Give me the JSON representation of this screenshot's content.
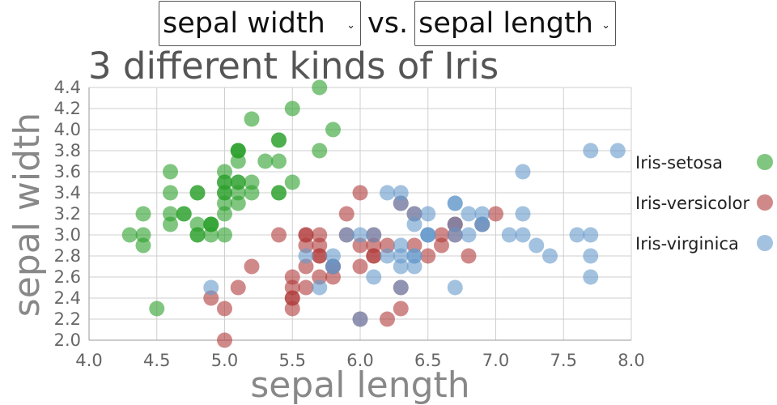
{
  "controls": {
    "y_select": {
      "selected": "sepal width"
    },
    "vs_label": "vs.",
    "x_select": {
      "selected": "sepal length"
    }
  },
  "chart_data": {
    "type": "scatter",
    "title": "3 different kinds of Iris",
    "xlabel": "sepal length",
    "ylabel": "sepal width",
    "xlim": [
      4.0,
      8.0
    ],
    "ylim": [
      2.0,
      4.4
    ],
    "xticks": [
      4.0,
      4.5,
      5.0,
      5.5,
      6.0,
      6.5,
      7.0,
      7.5,
      8.0
    ],
    "yticks": [
      2.0,
      2.2,
      2.4,
      2.6,
      2.8,
      3.0,
      3.2,
      3.4,
      3.6,
      3.8,
      4.0,
      4.2,
      4.4
    ],
    "grid": true,
    "legend_position": "right",
    "series": [
      {
        "name": "Iris-setosa",
        "color": "#2ca02c",
        "points": [
          [
            5.1,
            3.5
          ],
          [
            4.9,
            3.0
          ],
          [
            4.7,
            3.2
          ],
          [
            4.6,
            3.1
          ],
          [
            5.0,
            3.6
          ],
          [
            5.4,
            3.9
          ],
          [
            4.6,
            3.4
          ],
          [
            5.0,
            3.4
          ],
          [
            4.4,
            2.9
          ],
          [
            4.9,
            3.1
          ],
          [
            5.4,
            3.7
          ],
          [
            4.8,
            3.4
          ],
          [
            4.8,
            3.0
          ],
          [
            4.3,
            3.0
          ],
          [
            5.8,
            4.0
          ],
          [
            5.7,
            4.4
          ],
          [
            5.4,
            3.9
          ],
          [
            5.1,
            3.5
          ],
          [
            5.7,
            3.8
          ],
          [
            5.1,
            3.8
          ],
          [
            5.4,
            3.4
          ],
          [
            5.1,
            3.7
          ],
          [
            4.6,
            3.6
          ],
          [
            5.1,
            3.3
          ],
          [
            4.8,
            3.4
          ],
          [
            5.0,
            3.0
          ],
          [
            5.0,
            3.4
          ],
          [
            5.2,
            3.5
          ],
          [
            5.2,
            3.4
          ],
          [
            4.7,
            3.2
          ],
          [
            4.8,
            3.1
          ],
          [
            5.4,
            3.4
          ],
          [
            5.2,
            4.1
          ],
          [
            5.5,
            4.2
          ],
          [
            4.9,
            3.1
          ],
          [
            5.0,
            3.2
          ],
          [
            5.5,
            3.5
          ],
          [
            4.9,
            3.1
          ],
          [
            4.4,
            3.0
          ],
          [
            5.1,
            3.4
          ],
          [
            5.0,
            3.5
          ],
          [
            4.5,
            2.3
          ],
          [
            4.4,
            3.2
          ],
          [
            5.0,
            3.5
          ],
          [
            5.1,
            3.8
          ],
          [
            4.8,
            3.0
          ],
          [
            5.1,
            3.8
          ],
          [
            4.6,
            3.2
          ],
          [
            5.3,
            3.7
          ],
          [
            5.0,
            3.3
          ]
        ]
      },
      {
        "name": "Iris-versicolor",
        "color": "#b03a3a",
        "points": [
          [
            7.0,
            3.2
          ],
          [
            6.4,
            3.2
          ],
          [
            6.9,
            3.1
          ],
          [
            5.5,
            2.3
          ],
          [
            6.5,
            2.8
          ],
          [
            5.7,
            2.8
          ],
          [
            6.3,
            3.3
          ],
          [
            4.9,
            2.4
          ],
          [
            6.6,
            2.9
          ],
          [
            5.2,
            2.7
          ],
          [
            5.0,
            2.0
          ],
          [
            5.9,
            3.0
          ],
          [
            6.0,
            2.2
          ],
          [
            6.1,
            2.9
          ],
          [
            5.6,
            2.9
          ],
          [
            6.7,
            3.1
          ],
          [
            5.6,
            3.0
          ],
          [
            5.8,
            2.7
          ],
          [
            6.2,
            2.2
          ],
          [
            5.6,
            2.5
          ],
          [
            5.9,
            3.2
          ],
          [
            6.1,
            2.8
          ],
          [
            6.3,
            2.5
          ],
          [
            6.1,
            2.8
          ],
          [
            6.4,
            2.9
          ],
          [
            6.6,
            3.0
          ],
          [
            6.8,
            2.8
          ],
          [
            6.7,
            3.0
          ],
          [
            6.0,
            2.9
          ],
          [
            5.7,
            2.6
          ],
          [
            5.5,
            2.4
          ],
          [
            5.5,
            2.4
          ],
          [
            5.8,
            2.7
          ],
          [
            6.0,
            2.7
          ],
          [
            5.4,
            3.0
          ],
          [
            6.0,
            3.4
          ],
          [
            6.7,
            3.1
          ],
          [
            6.3,
            2.3
          ],
          [
            5.6,
            3.0
          ],
          [
            5.5,
            2.5
          ],
          [
            5.5,
            2.6
          ],
          [
            6.1,
            3.0
          ],
          [
            5.8,
            2.6
          ],
          [
            5.0,
            2.3
          ],
          [
            5.6,
            2.7
          ],
          [
            5.7,
            3.0
          ],
          [
            5.7,
            2.9
          ],
          [
            6.2,
            2.9
          ],
          [
            5.1,
            2.5
          ],
          [
            5.7,
            2.8
          ]
        ]
      },
      {
        "name": "Iris-virginica",
        "color": "#6699cc",
        "points": [
          [
            6.3,
            3.3
          ],
          [
            5.8,
            2.7
          ],
          [
            7.1,
            3.0
          ],
          [
            6.3,
            2.9
          ],
          [
            6.5,
            3.0
          ],
          [
            7.6,
            3.0
          ],
          [
            4.9,
            2.5
          ],
          [
            7.3,
            2.9
          ],
          [
            6.7,
            2.5
          ],
          [
            7.2,
            3.6
          ],
          [
            6.5,
            3.2
          ],
          [
            6.4,
            2.7
          ],
          [
            6.8,
            3.0
          ],
          [
            5.7,
            2.5
          ],
          [
            5.8,
            2.8
          ],
          [
            6.4,
            3.2
          ],
          [
            6.5,
            3.0
          ],
          [
            7.7,
            3.8
          ],
          [
            7.7,
            2.6
          ],
          [
            6.0,
            2.2
          ],
          [
            6.9,
            3.2
          ],
          [
            5.6,
            2.8
          ],
          [
            7.7,
            2.8
          ],
          [
            6.3,
            2.7
          ],
          [
            6.7,
            3.3
          ],
          [
            7.2,
            3.2
          ],
          [
            6.2,
            2.8
          ],
          [
            6.1,
            3.0
          ],
          [
            6.4,
            2.8
          ],
          [
            7.2,
            3.0
          ],
          [
            7.4,
            2.8
          ],
          [
            7.9,
            3.8
          ],
          [
            6.4,
            2.8
          ],
          [
            6.3,
            2.8
          ],
          [
            6.1,
            2.6
          ],
          [
            7.7,
            3.0
          ],
          [
            6.3,
            3.4
          ],
          [
            6.4,
            3.1
          ],
          [
            6.0,
            3.0
          ],
          [
            6.9,
            3.1
          ],
          [
            6.7,
            3.1
          ],
          [
            6.9,
            3.1
          ],
          [
            5.8,
            2.7
          ],
          [
            6.8,
            3.2
          ],
          [
            6.7,
            3.3
          ],
          [
            6.7,
            3.0
          ],
          [
            6.3,
            2.5
          ],
          [
            6.5,
            3.0
          ],
          [
            6.2,
            3.4
          ],
          [
            5.9,
            3.0
          ]
        ]
      }
    ]
  }
}
